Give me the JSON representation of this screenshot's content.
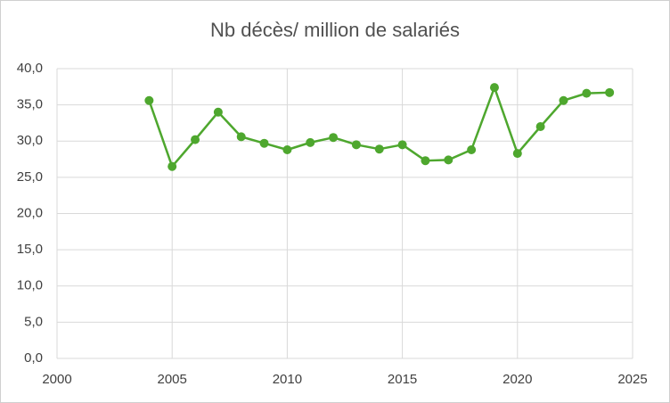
{
  "chart_data": {
    "type": "line",
    "title": "Nb décès/ million de salariés",
    "x": [
      2004,
      2005,
      2006,
      2007,
      2008,
      2009,
      2010,
      2011,
      2012,
      2013,
      2014,
      2015,
      2016,
      2017,
      2018,
      2019,
      2020,
      2021,
      2022,
      2023,
      2024
    ],
    "values": [
      35.6,
      26.5,
      30.2,
      34.0,
      30.6,
      29.7,
      28.8,
      29.8,
      30.5,
      29.5,
      28.9,
      29.5,
      27.3,
      27.4,
      28.8,
      37.4,
      28.3,
      32.0,
      35.6,
      36.6,
      36.7
    ],
    "color": "#4ea72e",
    "xlim": [
      2000,
      2025
    ],
    "xticks": [
      2000,
      2005,
      2010,
      2015,
      2020,
      2025
    ],
    "ylim": [
      0,
      40
    ],
    "yticks": [
      {
        "value": 0,
        "label": "0,0"
      },
      {
        "value": 5,
        "label": "5,0"
      },
      {
        "value": 10,
        "label": "10,0"
      },
      {
        "value": 15,
        "label": "15,0"
      },
      {
        "value": 20,
        "label": "20,0"
      },
      {
        "value": 25,
        "label": "25,0"
      },
      {
        "value": 30,
        "label": "30,0"
      },
      {
        "value": 35,
        "label": "35,0"
      },
      {
        "value": 40,
        "label": "40,0"
      }
    ],
    "grid": true
  }
}
